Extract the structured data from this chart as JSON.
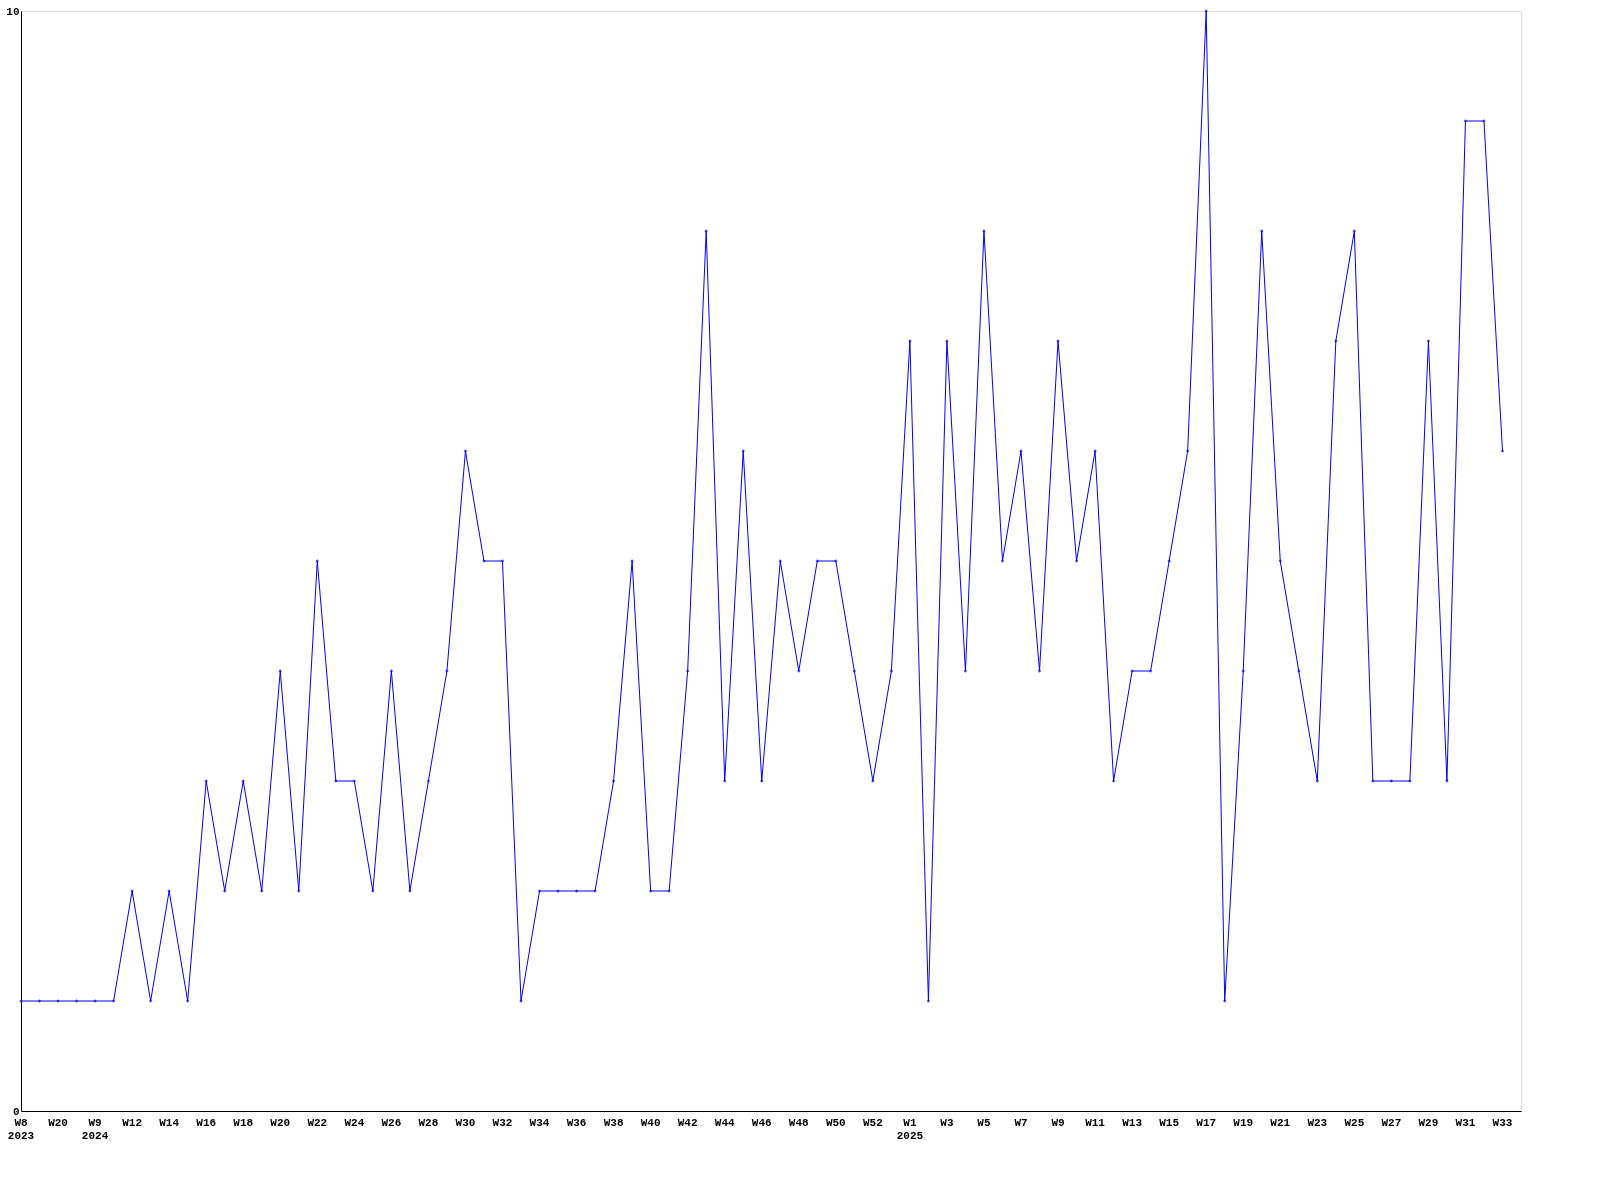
{
  "chart_data": {
    "type": "line",
    "categories": [
      "W8\n2023",
      null,
      "W20",
      null,
      "W9\n2024",
      null,
      "W12",
      null,
      "W14",
      null,
      "W16",
      null,
      "W18",
      null,
      "W20",
      null,
      "W22",
      null,
      "W24",
      null,
      "W26",
      null,
      "W28",
      null,
      "W30",
      null,
      "W32",
      null,
      "W34",
      null,
      "W36",
      null,
      "W38",
      null,
      "W40",
      null,
      "W42",
      null,
      "W44",
      null,
      "W46",
      null,
      "W48",
      null,
      "W50",
      null,
      "W52",
      null,
      "W1\n2025",
      null,
      "W3",
      null,
      "W5",
      null,
      "W7",
      null,
      "W9",
      null,
      "W11",
      null,
      "W13",
      null,
      "W15",
      null,
      "W17",
      null,
      "W19",
      null,
      "W21",
      null,
      "W23",
      null,
      "W25",
      null,
      "W27",
      null,
      "W29",
      null,
      "W31",
      null,
      "W33"
    ],
    "values": [
      1,
      1,
      1,
      1,
      1,
      1,
      2,
      1,
      2,
      1,
      3,
      2,
      3,
      2,
      4,
      2,
      5,
      3,
      3,
      2,
      4,
      2,
      3,
      4,
      6,
      5,
      5,
      1,
      2,
      2,
      2,
      2,
      3,
      5,
      2,
      2,
      4,
      8,
      3,
      6,
      3,
      5,
      4,
      5,
      5,
      4,
      3,
      4,
      7,
      1,
      7,
      4,
      8,
      5,
      6,
      4,
      7,
      5,
      6,
      3,
      4,
      4,
      5,
      6,
      10,
      1,
      4,
      8,
      5,
      4,
      3,
      7,
      8,
      3,
      3,
      3,
      7,
      3,
      9,
      9,
      6
    ],
    "color": "#0000ff",
    "ylim": [
      0,
      10
    ],
    "yticks": [
      0,
      10
    ],
    "grid": false,
    "marker": "diamond",
    "line_style": "solid"
  }
}
